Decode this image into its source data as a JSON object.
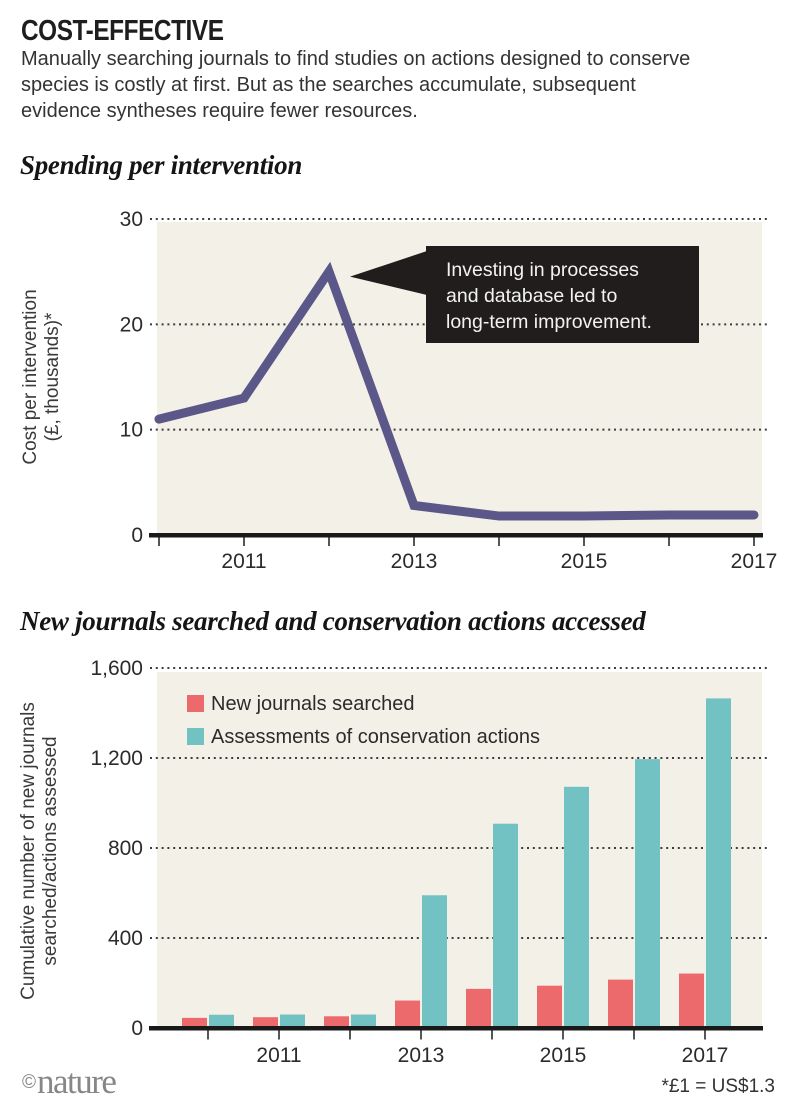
{
  "header": {
    "title": "COST-EFFECTIVE",
    "description_lines": [
      "Manually searching journals to find studies on actions designed to conserve",
      "species is costly at first. But as the searches accumulate, subsequent",
      "evidence syntheses require fewer resources."
    ]
  },
  "colors": {
    "plot_background": "#f3f0e7",
    "line": "#5b5789",
    "annotation_background": "#211d1d",
    "annotation_text": "#f2f2f2",
    "bar_red": "#ec6a6b",
    "bar_teal": "#73c2c3",
    "axis": "#191919",
    "tick_text": "#2b2b2b",
    "gridline": "#3d3d3d",
    "brand_gray": "#878787"
  },
  "chart_data": [
    {
      "type": "line",
      "title": "Spending per intervention",
      "ylabel_lines": [
        "Cost per intervention",
        "(£, thousands)*"
      ],
      "x": [
        2010,
        2011,
        2012,
        2013,
        2014,
        2015,
        2016,
        2017
      ],
      "values": [
        11,
        13,
        25,
        2.8,
        1.8,
        1.8,
        1.9,
        1.9
      ],
      "xticks_labeled": [
        2011,
        2013,
        2015,
        2017
      ],
      "yticks": [
        0,
        10,
        20,
        30
      ],
      "ylim": [
        0,
        30
      ],
      "grid": "dotted-horizontal",
      "legend_position": "none",
      "annotation": {
        "text_lines": [
          "Investing in processes",
          "and database led to",
          "long-term improvement."
        ],
        "points_to": {
          "x": 2012,
          "y": 25
        }
      }
    },
    {
      "type": "bar",
      "title": "New journals searched and conservation actions accessed",
      "ylabel_lines": [
        "Cumulative number of new journals",
        "searched/actions assessed"
      ],
      "categories": [
        2010,
        2011,
        2012,
        2013,
        2014,
        2015,
        2016,
        2017
      ],
      "series": [
        {
          "name": "New journals searched",
          "color": "#ec6a6b",
          "values": [
            45,
            48,
            52,
            122,
            174,
            188,
            215,
            242
          ]
        },
        {
          "name": "Assessments of conservation actions",
          "color": "#73c2c3",
          "values": [
            59,
            60,
            60,
            590,
            908,
            1072,
            1195,
            1465
          ]
        }
      ],
      "xticks_labeled": [
        2011,
        2013,
        2015,
        2017
      ],
      "yticks": [
        0,
        400,
        800,
        1200,
        1600
      ],
      "ytick_labels": [
        "0",
        "400",
        "800",
        "1,200",
        "1,600"
      ],
      "ylim": [
        0,
        1600
      ],
      "grid": "dotted-horizontal",
      "legend_position": "top-left"
    }
  ],
  "footer": {
    "brand_copyright": "©",
    "brand_name": "nature",
    "footnote": "*£1 = US$1.3"
  }
}
